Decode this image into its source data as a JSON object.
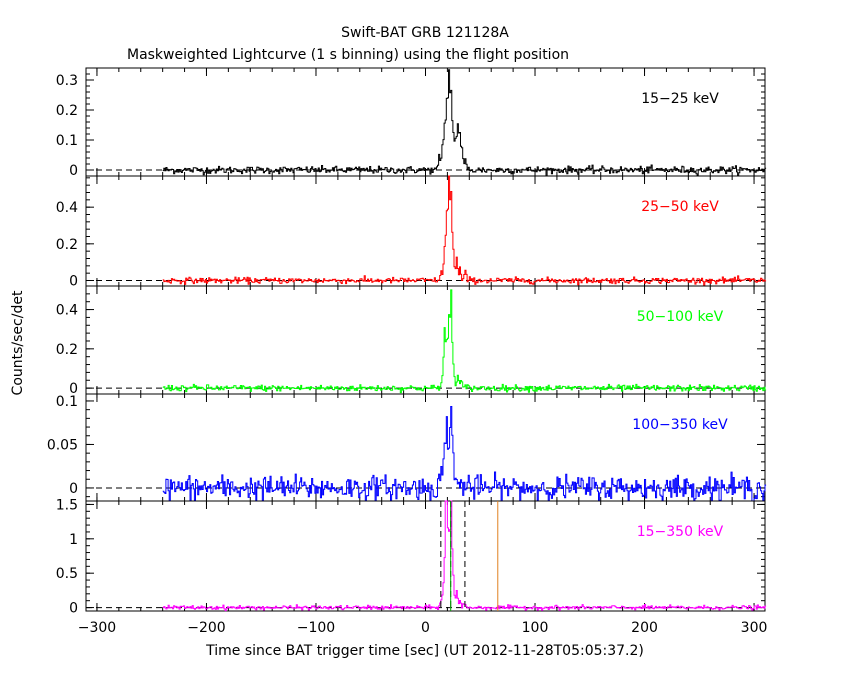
{
  "chart_data": {
    "type": "line",
    "title": "Swift-BAT GRB 121128A",
    "subtitle": "Maskweighted Lightcurve (1 s binning) using the flight position",
    "xlabel": "Time since BAT trigger time [sec] (UT 2012-11-28T05:05:37.2)",
    "ylabel": "Counts/sec/det",
    "xlim": [
      -310,
      310
    ],
    "x_ticks": [
      -300,
      -200,
      -100,
      0,
      100,
      200,
      300
    ],
    "data_x_range": [
      -240,
      310
    ],
    "grid": false,
    "panels": [
      {
        "name": "15-25 keV",
        "label": "15−25 keV",
        "color": "#000000",
        "ylim": [
          -0.02,
          0.34
        ],
        "y_ticks": [
          0,
          0.1,
          0.2,
          0.3
        ],
        "y_tick_labels": [
          "0",
          "0.1",
          "0.2",
          "0.3"
        ],
        "noise": 0.006,
        "peaks": [
          [
            12,
            0.04
          ],
          [
            15,
            0.07
          ],
          [
            17,
            0.15
          ],
          [
            19,
            0.22
          ],
          [
            21,
            0.32
          ],
          [
            23,
            0.25
          ],
          [
            25,
            0.12
          ],
          [
            27,
            0.09
          ],
          [
            29,
            0.15
          ],
          [
            31,
            0.12
          ],
          [
            33,
            0.06
          ],
          [
            36,
            0.03
          ]
        ]
      },
      {
        "name": "25-50 keV",
        "label": "25−50 keV",
        "color": "#ff0000",
        "ylim": [
          -0.03,
          0.57
        ],
        "y_ticks": [
          0,
          0.2,
          0.4
        ],
        "y_tick_labels": [
          "0",
          "0.2",
          "0.4"
        ],
        "noise": 0.008,
        "peaks": [
          [
            14,
            0.04
          ],
          [
            17,
            0.18
          ],
          [
            19,
            0.35
          ],
          [
            21,
            0.55
          ],
          [
            23,
            0.45
          ],
          [
            25,
            0.15
          ],
          [
            28,
            0.12
          ],
          [
            31,
            0.06
          ],
          [
            36,
            0.04
          ]
        ]
      },
      {
        "name": "50-100 keV",
        "label": "50−100 keV",
        "color": "#00ff00",
        "ylim": [
          -0.03,
          0.52
        ],
        "y_ticks": [
          0,
          0.2,
          0.4
        ],
        "y_tick_labels": [
          "0",
          "0.2",
          "0.4"
        ],
        "noise": 0.008,
        "peaks": [
          [
            15,
            0.05
          ],
          [
            17,
            0.29
          ],
          [
            19,
            0.22
          ],
          [
            21,
            0.35
          ],
          [
            23,
            0.48
          ],
          [
            25,
            0.1
          ],
          [
            29,
            0.06
          ],
          [
            32,
            0.03
          ]
        ]
      },
      {
        "name": "100-350 keV",
        "label": "100−350 keV",
        "color": "#0000ff",
        "ylim": [
          -0.015,
          0.108
        ],
        "y_ticks": [
          0,
          0.05,
          0.1
        ],
        "y_tick_labels": [
          "0",
          "0.05",
          "0.1"
        ],
        "noise": 0.007,
        "peaks": [
          [
            14,
            0.02
          ],
          [
            17,
            0.04
          ],
          [
            19,
            0.07
          ],
          [
            21,
            0.05
          ],
          [
            23,
            0.095
          ],
          [
            25,
            0.03
          ]
        ]
      },
      {
        "name": "15-350 keV",
        "label": "15−350 keV",
        "color": "#ff00ff",
        "ylim": [
          -0.05,
          1.55
        ],
        "y_ticks": [
          0,
          0.5,
          1,
          1.5
        ],
        "y_tick_labels": [
          "0",
          "0.5",
          "1",
          "1.5"
        ],
        "noise": 0.015,
        "peaks": [
          [
            14,
            0.1
          ],
          [
            16,
            0.3
          ],
          [
            18,
            1.2
          ],
          [
            19,
            1.55
          ],
          [
            21,
            1.0
          ],
          [
            23,
            1.55
          ],
          [
            25,
            0.4
          ],
          [
            28,
            0.25
          ],
          [
            31,
            0.1
          ],
          [
            35,
            0.05
          ]
        ],
        "dashed_lines_x": [
          14,
          23,
          36
        ],
        "solid_line_x": 23,
        "orange_line_x": 66
      }
    ]
  }
}
